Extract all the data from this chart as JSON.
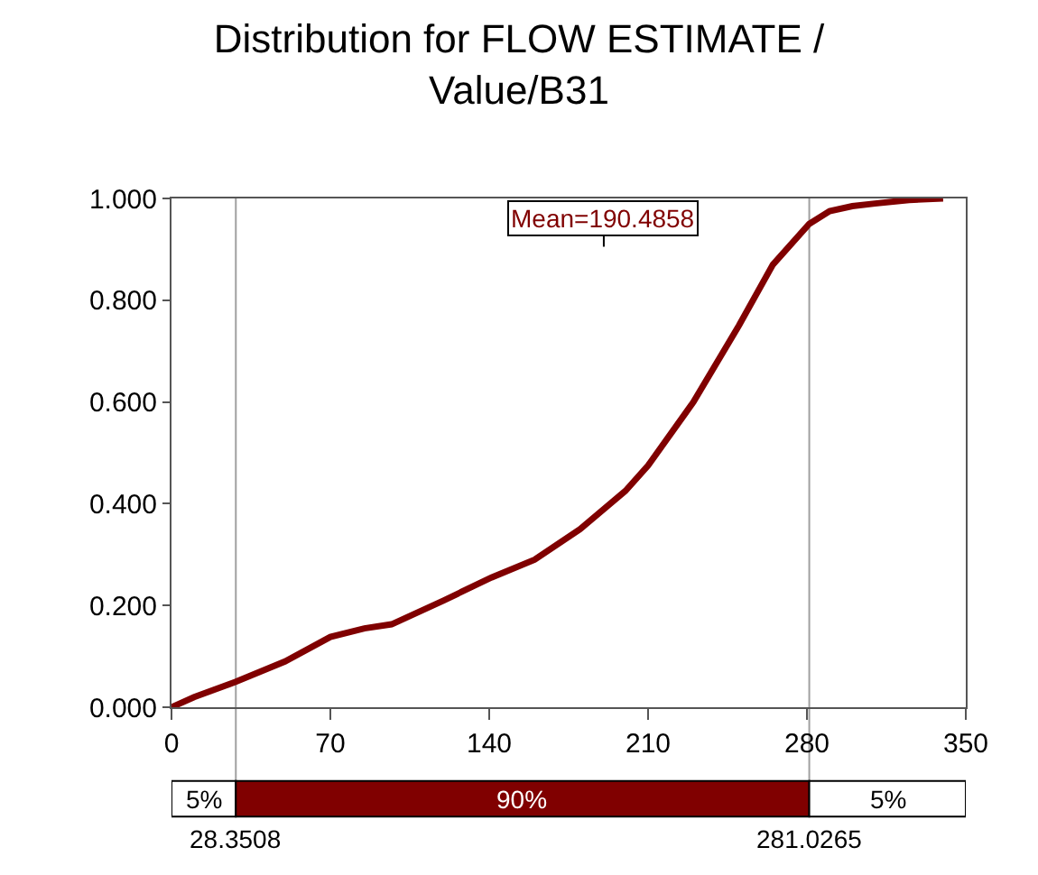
{
  "chart_data": {
    "type": "line",
    "title": "Distribution for FLOW ESTIMATE /\nValue/B31",
    "x": [
      0,
      10,
      28.35,
      50,
      70,
      85,
      97,
      120,
      141,
      160,
      180,
      200,
      210,
      230,
      250,
      265,
      281,
      290,
      300,
      310,
      325,
      340
    ],
    "series": [
      {
        "color": "#800000",
        "values": [
          0,
          0.02,
          0.05,
          0.09,
          0.138,
          0.155,
          0.163,
          0.21,
          0.255,
          0.29,
          0.35,
          0.425,
          0.475,
          0.6,
          0.75,
          0.87,
          0.95,
          0.975,
          0.985,
          0.99,
          0.997,
          1.0
        ]
      }
    ],
    "xlim": [
      0,
      350
    ],
    "xticks": [
      0,
      70,
      140,
      210,
      280,
      350
    ],
    "ylim": [
      0,
      1
    ],
    "yticks": [
      {
        "value": 0,
        "label": "0.000"
      },
      {
        "value": 0.2,
        "label": "0.200"
      },
      {
        "value": 0.4,
        "label": "0.400"
      },
      {
        "value": 0.6,
        "label": "0.600"
      },
      {
        "value": 0.8,
        "label": "0.800"
      },
      {
        "value": 1,
        "label": "1.000"
      }
    ],
    "annotations": [
      "5%",
      "90%",
      "5%"
    ],
    "ref_lines": [
      {
        "axis": "x",
        "value": 28.3508,
        "label": "28.3508",
        "color": "#a0a0a0"
      },
      {
        "axis": "x",
        "value": 281.0265,
        "label": "281.0265",
        "color": "#a0a0a0"
      },
      {
        "axis": "x",
        "value": 190.4858,
        "label": "Mean=190.4858"
      }
    ],
    "grid": false,
    "marker": "none",
    "line_style": "solid"
  }
}
